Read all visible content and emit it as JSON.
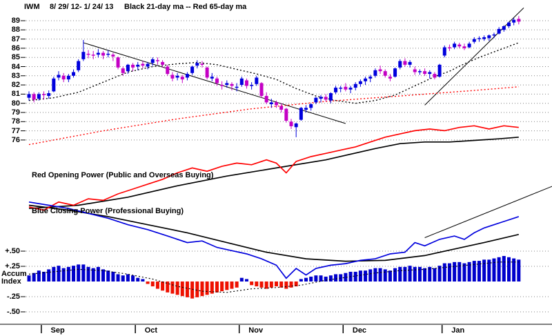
{
  "title": {
    "symbol": "IWM",
    "date_range": "8/ 29/ 12- 1/ 24/ 13",
    "ma_legend": "Black 21-day ma -- Red 65-day ma"
  },
  "labels": {
    "opening_power": "Red Opening Power (Public and Overseas Buying)",
    "closing_power": "Blue Closing Power (Professional Buying)",
    "accum_index": "Accum\nIndex"
  },
  "colors": {
    "up_candle": "#0000dd",
    "down_candle": "#c400c4",
    "ma21": "#000000",
    "ma65": "#ff0000",
    "opening_power": "#ff0000",
    "closing_power": "#0000dd",
    "power_ma": "#000000",
    "accum_up": "#0000cc",
    "accum_down": "#ee1100",
    "grid": "#808080",
    "axis": "#000000"
  },
  "chart_data": {
    "type": "candlestick",
    "symbol": "IWM",
    "date_range": "8/29/12 - 1/24/13",
    "price_axis": {
      "min": 76,
      "max": 89,
      "ticks": [
        89,
        88,
        87,
        86,
        85,
        84,
        83,
        82,
        81,
        80,
        79,
        78,
        77,
        76
      ]
    },
    "months": [
      {
        "label": "Sep",
        "index": 3
      },
      {
        "label": "Oct",
        "index": 22
      },
      {
        "label": "Nov",
        "index": 43
      },
      {
        "label": "Dec",
        "index": 64
      },
      {
        "label": "Jan",
        "index": 84
      }
    ],
    "candles_ohlc": [
      [
        80.6,
        81.3,
        80.3,
        81.0
      ],
      [
        81.0,
        81.2,
        80.1,
        80.4
      ],
      [
        80.5,
        81.2,
        80.3,
        81.0
      ],
      [
        81.0,
        81.3,
        80.4,
        80.9
      ],
      [
        80.8,
        81.4,
        80.5,
        81.1
      ],
      [
        81.3,
        82.9,
        81.2,
        82.7
      ],
      [
        82.8,
        83.5,
        82.5,
        83.1
      ],
      [
        83.0,
        83.3,
        82.3,
        82.6
      ],
      [
        82.6,
        83.2,
        82.3,
        83.0
      ],
      [
        83.0,
        83.7,
        82.8,
        83.4
      ],
      [
        83.6,
        84.8,
        83.4,
        84.6
      ],
      [
        84.8,
        86.9,
        84.6,
        85.6
      ],
      [
        85.4,
        85.8,
        84.9,
        85.3
      ],
      [
        85.3,
        85.7,
        84.8,
        85.2
      ],
      [
        85.3,
        85.9,
        85.0,
        85.5
      ],
      [
        85.5,
        85.7,
        84.8,
        85.2
      ],
      [
        85.3,
        85.8,
        85.0,
        85.4
      ],
      [
        85.3,
        85.5,
        84.6,
        85.1
      ],
      [
        85.0,
        85.1,
        83.7,
        83.9
      ],
      [
        83.8,
        84.0,
        83.0,
        83.3
      ],
      [
        83.5,
        84.3,
        83.2,
        84.2
      ],
      [
        84.2,
        84.4,
        83.5,
        83.9
      ],
      [
        84.0,
        84.5,
        83.6,
        84.2
      ],
      [
        84.3,
        84.6,
        83.8,
        84.1
      ],
      [
        84.0,
        84.5,
        83.7,
        84.3
      ],
      [
        84.4,
        85.0,
        84.1,
        84.8
      ],
      [
        84.7,
        85.0,
        84.2,
        84.6
      ],
      [
        84.5,
        84.7,
        83.9,
        84.2
      ],
      [
        84.0,
        84.2,
        83.0,
        83.2
      ],
      [
        83.1,
        83.4,
        82.4,
        82.7
      ],
      [
        82.8,
        83.3,
        82.5,
        83.0
      ],
      [
        82.9,
        83.1,
        82.2,
        82.6
      ],
      [
        82.8,
        83.4,
        82.5,
        83.2
      ],
      [
        83.3,
        84.1,
        83.1,
        84.0
      ],
      [
        84.1,
        84.7,
        83.8,
        84.4
      ],
      [
        84.3,
        84.6,
        83.9,
        84.2
      ],
      [
        83.9,
        84.0,
        82.6,
        82.8
      ],
      [
        82.7,
        83.3,
        82.4,
        82.9
      ],
      [
        82.7,
        82.9,
        81.9,
        82.2
      ],
      [
        82.0,
        82.4,
        81.5,
        81.9
      ],
      [
        82.0,
        82.5,
        81.7,
        82.2
      ],
      [
        82.1,
        82.3,
        81.4,
        81.9
      ],
      [
        81.7,
        82.2,
        81.3,
        81.8
      ],
      [
        82.0,
        82.9,
        81.8,
        82.7
      ],
      [
        82.5,
        82.7,
        81.6,
        81.9
      ],
      [
        81.9,
        82.3,
        81.5,
        82.0
      ],
      [
        82.1,
        83.0,
        81.9,
        82.8
      ],
      [
        82.2,
        82.3,
        80.6,
        80.8
      ],
      [
        80.8,
        81.2,
        79.9,
        80.1
      ],
      [
        79.9,
        80.5,
        79.5,
        80.1
      ],
      [
        80.1,
        80.3,
        79.5,
        79.8
      ],
      [
        79.7,
        80.0,
        79.0,
        79.3
      ],
      [
        79.4,
        79.5,
        77.9,
        78.1
      ],
      [
        78.0,
        78.3,
        77.2,
        77.5
      ],
      [
        77.4,
        77.9,
        76.3,
        77.8
      ],
      [
        78.2,
        79.6,
        78.1,
        79.5
      ],
      [
        79.3,
        79.8,
        79.0,
        79.5
      ],
      [
        79.5,
        80.0,
        79.2,
        79.9
      ],
      [
        80.1,
        80.7,
        79.9,
        80.6
      ],
      [
        80.5,
        80.9,
        80.1,
        80.7
      ],
      [
        80.7,
        81.0,
        80.2,
        80.4
      ],
      [
        80.3,
        81.2,
        80.0,
        81.1
      ],
      [
        81.2,
        81.9,
        81.0,
        81.7
      ],
      [
        81.6,
        81.9,
        81.2,
        81.7
      ],
      [
        81.8,
        82.2,
        81.3,
        81.5
      ],
      [
        81.5,
        81.9,
        81.1,
        81.7
      ],
      [
        81.7,
        82.3,
        81.4,
        82.1
      ],
      [
        82.1,
        82.6,
        81.8,
        82.4
      ],
      [
        82.4,
        82.9,
        82.0,
        82.7
      ],
      [
        82.7,
        83.1,
        82.3,
        82.9
      ],
      [
        83.0,
        83.8,
        82.8,
        83.6
      ],
      [
        83.7,
        84.1,
        83.2,
        83.5
      ],
      [
        83.5,
        83.7,
        82.8,
        83.0
      ],
      [
        82.9,
        83.2,
        82.4,
        82.7
      ],
      [
        82.9,
        83.9,
        82.8,
        83.8
      ],
      [
        83.9,
        84.8,
        83.7,
        84.6
      ],
      [
        84.6,
        84.9,
        84.0,
        84.2
      ],
      [
        84.2,
        84.7,
        83.9,
        84.5
      ],
      [
        83.7,
        84.0,
        83.1,
        83.4
      ],
      [
        83.4,
        83.7,
        83.1,
        83.5
      ],
      [
        83.5,
        83.8,
        83.0,
        83.2
      ],
      [
        83.2,
        83.6,
        82.7,
        83.4
      ],
      [
        83.2,
        83.4,
        82.6,
        82.8
      ],
      [
        82.9,
        84.3,
        82.8,
        84.2
      ],
      [
        85.2,
        86.3,
        85.0,
        86.1
      ],
      [
        86.1,
        86.4,
        85.7,
        86.0
      ],
      [
        86.1,
        86.7,
        85.9,
        86.5
      ],
      [
        86.4,
        86.6,
        86.0,
        86.2
      ],
      [
        86.2,
        86.5,
        85.8,
        86.0
      ],
      [
        86.1,
        86.7,
        86.0,
        86.5
      ],
      [
        86.7,
        87.2,
        86.5,
        87.0
      ],
      [
        87.0,
        87.3,
        86.7,
        87.1
      ],
      [
        87.0,
        87.4,
        86.8,
        87.2
      ],
      [
        87.1,
        87.5,
        86.8,
        87.4
      ],
      [
        87.4,
        87.7,
        87.1,
        87.5
      ],
      [
        87.6,
        88.3,
        87.5,
        88.1
      ],
      [
        88.0,
        88.5,
        87.8,
        88.4
      ],
      [
        88.4,
        88.9,
        88.2,
        88.8
      ],
      [
        88.8,
        89.3,
        88.5,
        89.1
      ],
      [
        89.2,
        89.5,
        88.6,
        88.9
      ]
    ],
    "ma21_black_dotted": [
      [
        0,
        80.3
      ],
      [
        5,
        80.6
      ],
      [
        10,
        81.2
      ],
      [
        15,
        82.3
      ],
      [
        20,
        83.4
      ],
      [
        25,
        84.0
      ],
      [
        30,
        84.3
      ],
      [
        34,
        84.45
      ],
      [
        38,
        84.2
      ],
      [
        42,
        83.7
      ],
      [
        46,
        83.2
      ],
      [
        50,
        82.6
      ],
      [
        54,
        81.6
      ],
      [
        58,
        80.8
      ],
      [
        62,
        80.3
      ],
      [
        66,
        80.0
      ],
      [
        70,
        80.3
      ],
      [
        74,
        80.9
      ],
      [
        78,
        81.9
      ],
      [
        82,
        82.9
      ],
      [
        85,
        83.5
      ],
      [
        88,
        84.3
      ],
      [
        91,
        85.0
      ],
      [
        94,
        85.6
      ],
      [
        97,
        86.2
      ],
      [
        99,
        86.6
      ]
    ],
    "ma65_red_dotted": [
      [
        0,
        75.5
      ],
      [
        15,
        77.0
      ],
      [
        30,
        78.3
      ],
      [
        45,
        79.4
      ],
      [
        60,
        80.2
      ],
      [
        75,
        80.8
      ],
      [
        90,
        81.4
      ],
      [
        99,
        81.8
      ]
    ],
    "trendlines_price": [
      {
        "from": [
          11,
          86.6
        ],
        "to": [
          64,
          77.8
        ]
      },
      {
        "from": [
          80,
          79.8
        ],
        "to": [
          100,
          90.4
        ]
      }
    ],
    "power_panel": {
      "units": "relative 0-100 (no visible scale)",
      "opening_power_red": [
        [
          0,
          49
        ],
        [
          3,
          47
        ],
        [
          6,
          52
        ],
        [
          9,
          50
        ],
        [
          12,
          54
        ],
        [
          15,
          53
        ],
        [
          18,
          57
        ],
        [
          21,
          60
        ],
        [
          24,
          63
        ],
        [
          27,
          66
        ],
        [
          30,
          70
        ],
        [
          33,
          73
        ],
        [
          36,
          71
        ],
        [
          39,
          74
        ],
        [
          42,
          76
        ],
        [
          45,
          75
        ],
        [
          48,
          78
        ],
        [
          50,
          76
        ],
        [
          52,
          70
        ],
        [
          54,
          77
        ],
        [
          57,
          80
        ],
        [
          60,
          82
        ],
        [
          63,
          84
        ],
        [
          66,
          86
        ],
        [
          69,
          89
        ],
        [
          72,
          92
        ],
        [
          75,
          94
        ],
        [
          78,
          96
        ],
        [
          81,
          97
        ],
        [
          84,
          96
        ],
        [
          87,
          98
        ],
        [
          90,
          99
        ],
        [
          93,
          97
        ],
        [
          96,
          99
        ],
        [
          99,
          98
        ]
      ],
      "opening_power_black_ma": [
        [
          0,
          48
        ],
        [
          10,
          50
        ],
        [
          20,
          55
        ],
        [
          30,
          62
        ],
        [
          40,
          68
        ],
        [
          50,
          73
        ],
        [
          60,
          78
        ],
        [
          70,
          85
        ],
        [
          75,
          88
        ],
        [
          80,
          89
        ],
        [
          85,
          89
        ],
        [
          90,
          90
        ],
        [
          95,
          91
        ],
        [
          99,
          92
        ]
      ],
      "closing_power_blue": [
        [
          0,
          52
        ],
        [
          4,
          50
        ],
        [
          8,
          48
        ],
        [
          12,
          45
        ],
        [
          16,
          42
        ],
        [
          20,
          38
        ],
        [
          24,
          35
        ],
        [
          28,
          31
        ],
        [
          32,
          27
        ],
        [
          35,
          28
        ],
        [
          38,
          24
        ],
        [
          41,
          22
        ],
        [
          44,
          20
        ],
        [
          47,
          17
        ],
        [
          50,
          13
        ],
        [
          52,
          5
        ],
        [
          54,
          11
        ],
        [
          56,
          7
        ],
        [
          58,
          11
        ],
        [
          61,
          13
        ],
        [
          64,
          14
        ],
        [
          67,
          16
        ],
        [
          70,
          17
        ],
        [
          73,
          20
        ],
        [
          76,
          21
        ],
        [
          78,
          27
        ],
        [
          80,
          25
        ],
        [
          83,
          29
        ],
        [
          86,
          31
        ],
        [
          88,
          29
        ],
        [
          90,
          33
        ],
        [
          92,
          36
        ],
        [
          94,
          38
        ],
        [
          96,
          40
        ],
        [
          98,
          42
        ],
        [
          99,
          43
        ]
      ],
      "closing_power_black_ma": [
        [
          0,
          50
        ],
        [
          8,
          47
        ],
        [
          16,
          43
        ],
        [
          24,
          38
        ],
        [
          32,
          33
        ],
        [
          40,
          27
        ],
        [
          48,
          21
        ],
        [
          56,
          17
        ],
        [
          64,
          15.5
        ],
        [
          72,
          16
        ],
        [
          80,
          19
        ],
        [
          86,
          23
        ],
        [
          92,
          27
        ],
        [
          99,
          32
        ]
      ],
      "trendline": [
        {
          "from": [
            80,
            30
          ],
          "to": [
            106,
            62
          ]
        }
      ]
    },
    "accum_index": {
      "scale": [
        {
          "label": "+.50",
          "value": 0.5
        },
        {
          "label": "+.25",
          "value": 0.25
        },
        {
          "label": "-.25",
          "value": -0.25
        },
        {
          "label": "-.50",
          "value": -0.5
        }
      ],
      "values": [
        0.1,
        0.14,
        0.18,
        0.16,
        0.2,
        0.24,
        0.26,
        0.22,
        0.24,
        0.26,
        0.28,
        0.28,
        0.24,
        0.22,
        0.24,
        0.2,
        0.18,
        0.16,
        0.12,
        0.1,
        0.12,
        0.1,
        0.06,
        0.04,
        -0.04,
        -0.08,
        -0.12,
        -0.15,
        -0.18,
        -0.2,
        -0.22,
        -0.24,
        -0.26,
        -0.28,
        -0.26,
        -0.24,
        -0.22,
        -0.2,
        -0.18,
        -0.16,
        -0.14,
        -0.12,
        -0.1,
        0.06,
        0.04,
        -0.06,
        -0.08,
        -0.1,
        -0.12,
        -0.1,
        -0.08,
        -0.1,
        -0.12,
        -0.1,
        -0.08,
        0.04,
        0.06,
        0.08,
        0.1,
        0.1,
        0.08,
        0.1,
        0.12,
        0.12,
        0.14,
        0.16,
        0.16,
        0.18,
        0.18,
        0.2,
        0.22,
        0.22,
        0.2,
        0.18,
        0.22,
        0.24,
        0.24,
        0.26,
        0.24,
        0.24,
        0.22,
        0.24,
        0.22,
        0.26,
        0.3,
        0.3,
        0.32,
        0.32,
        0.3,
        0.32,
        0.34,
        0.34,
        0.36,
        0.36,
        0.38,
        0.4,
        0.42,
        0.4,
        0.38,
        0.36
      ],
      "ma_black_dotted": [
        [
          0,
          0.12
        ],
        [
          5,
          0.16
        ],
        [
          10,
          0.2
        ],
        [
          15,
          0.18
        ],
        [
          20,
          0.12
        ],
        [
          25,
          0.04
        ],
        [
          30,
          -0.08
        ],
        [
          35,
          -0.16
        ],
        [
          40,
          -0.18
        ],
        [
          45,
          -0.12
        ],
        [
          50,
          -0.1
        ],
        [
          55,
          -0.06
        ],
        [
          60,
          0.02
        ],
        [
          65,
          0.08
        ],
        [
          70,
          0.14
        ],
        [
          75,
          0.18
        ],
        [
          80,
          0.2
        ],
        [
          85,
          0.24
        ],
        [
          90,
          0.28
        ],
        [
          95,
          0.32
        ],
        [
          99,
          0.32
        ]
      ]
    }
  }
}
